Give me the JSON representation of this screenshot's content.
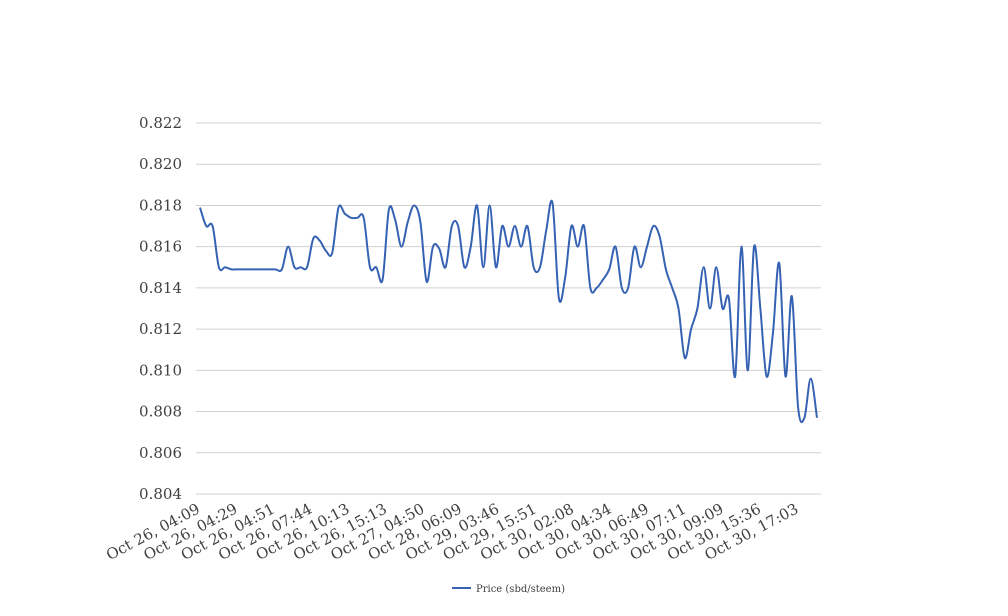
{
  "chart_data": {
    "type": "line",
    "title": "",
    "xlabel": "",
    "ylabel": "",
    "ylim": [
      0.804,
      0.822
    ],
    "yticks": [
      "0.804",
      "0.806",
      "0.808",
      "0.810",
      "0.812",
      "0.814",
      "0.816",
      "0.818",
      "0.820",
      "0.822"
    ],
    "xtick_labels": [
      "Oct 26, 04:09",
      "Oct 26, 04:29",
      "Oct 26, 04:51",
      "Oct 26, 07:44",
      "Oct 26, 10:13",
      "Oct 26, 15:13",
      "Oct 27, 04:50",
      "Oct 28, 06:09",
      "Oct 29, 03:46",
      "Oct 29, 15:51",
      "Oct 30, 02:08",
      "Oct 30, 04:34",
      "Oct 30, 06:49",
      "Oct 30, 07:11",
      "Oct 30, 09:09",
      "Oct 30, 15:36",
      "Oct 30, 17:03"
    ],
    "grid": true,
    "legend_position": "bottom",
    "series": [
      {
        "name": "Price (sbd/steem)",
        "color": "#3562B3",
        "values": [
          0.8179,
          0.817,
          0.817,
          0.815,
          0.815,
          0.8149,
          0.8149,
          0.8149,
          0.8149,
          0.8149,
          0.8149,
          0.8149,
          0.8149,
          0.8149,
          0.816,
          0.815,
          0.815,
          0.815,
          0.8164,
          0.8163,
          0.8158,
          0.8157,
          0.8179,
          0.8176,
          0.8174,
          0.8174,
          0.8174,
          0.815,
          0.815,
          0.8144,
          0.8178,
          0.8173,
          0.816,
          0.8172,
          0.818,
          0.8172,
          0.8143,
          0.816,
          0.8159,
          0.815,
          0.817,
          0.817,
          0.815,
          0.816,
          0.818,
          0.815,
          0.818,
          0.815,
          0.817,
          0.816,
          0.817,
          0.816,
          0.817,
          0.815,
          0.815,
          0.8168,
          0.8181,
          0.8135,
          0.8145,
          0.817,
          0.816,
          0.817,
          0.814,
          0.814,
          0.8144,
          0.8149,
          0.816,
          0.814,
          0.814,
          0.816,
          0.815,
          0.816,
          0.817,
          0.8165,
          0.8149,
          0.814,
          0.813,
          0.8106,
          0.812,
          0.813,
          0.815,
          0.813,
          0.815,
          0.813,
          0.8135,
          0.8097,
          0.816,
          0.81,
          0.816,
          0.813,
          0.8097,
          0.8118,
          0.8152,
          0.8097,
          0.8136,
          0.8082,
          0.8077,
          0.8096,
          0.8077
        ]
      }
    ]
  }
}
